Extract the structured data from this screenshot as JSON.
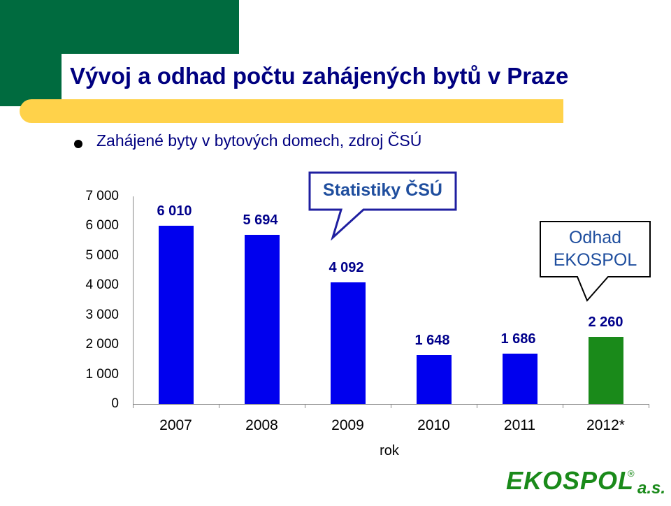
{
  "title": "Vývoj a odhad počtu zahájených bytů v Praze",
  "subtitle": "Zahájené byty v bytových domech, zdroj ČSÚ",
  "callouts": {
    "csu": "Statistiky ČSÚ",
    "estimate_line1": "Odhad",
    "estimate_line2": "EKOSPOL"
  },
  "logo": {
    "text": "EKOSPOL",
    "suffix": "a.s.",
    "mark": "®"
  },
  "colors": {
    "header_green": "#006b3f",
    "accent_yellow": "#ffd24a",
    "title_navy": "#000080",
    "bar_blue": "#0000ee",
    "bar_green": "#1a8a1a"
  },
  "chart_data": {
    "type": "bar",
    "categories": [
      "2007",
      "2008",
      "2009",
      "2010",
      "2011",
      "2012*"
    ],
    "values": [
      6010,
      5694,
      4092,
      1648,
      1686,
      2260
    ],
    "value_labels": [
      "6 010",
      "5 694",
      "4 092",
      "1 648",
      "1 686",
      "2 260"
    ],
    "bar_colors": [
      "#0000ee",
      "#0000ee",
      "#0000ee",
      "#0000ee",
      "#0000ee",
      "#1a8a1a"
    ],
    "yticks": [
      "0",
      "1 000",
      "2 000",
      "3 000",
      "4 000",
      "5 000",
      "6 000",
      "7 000"
    ],
    "ylim": [
      0,
      7000
    ],
    "xlabel": "rok",
    "ylabel": "",
    "grid": false
  }
}
